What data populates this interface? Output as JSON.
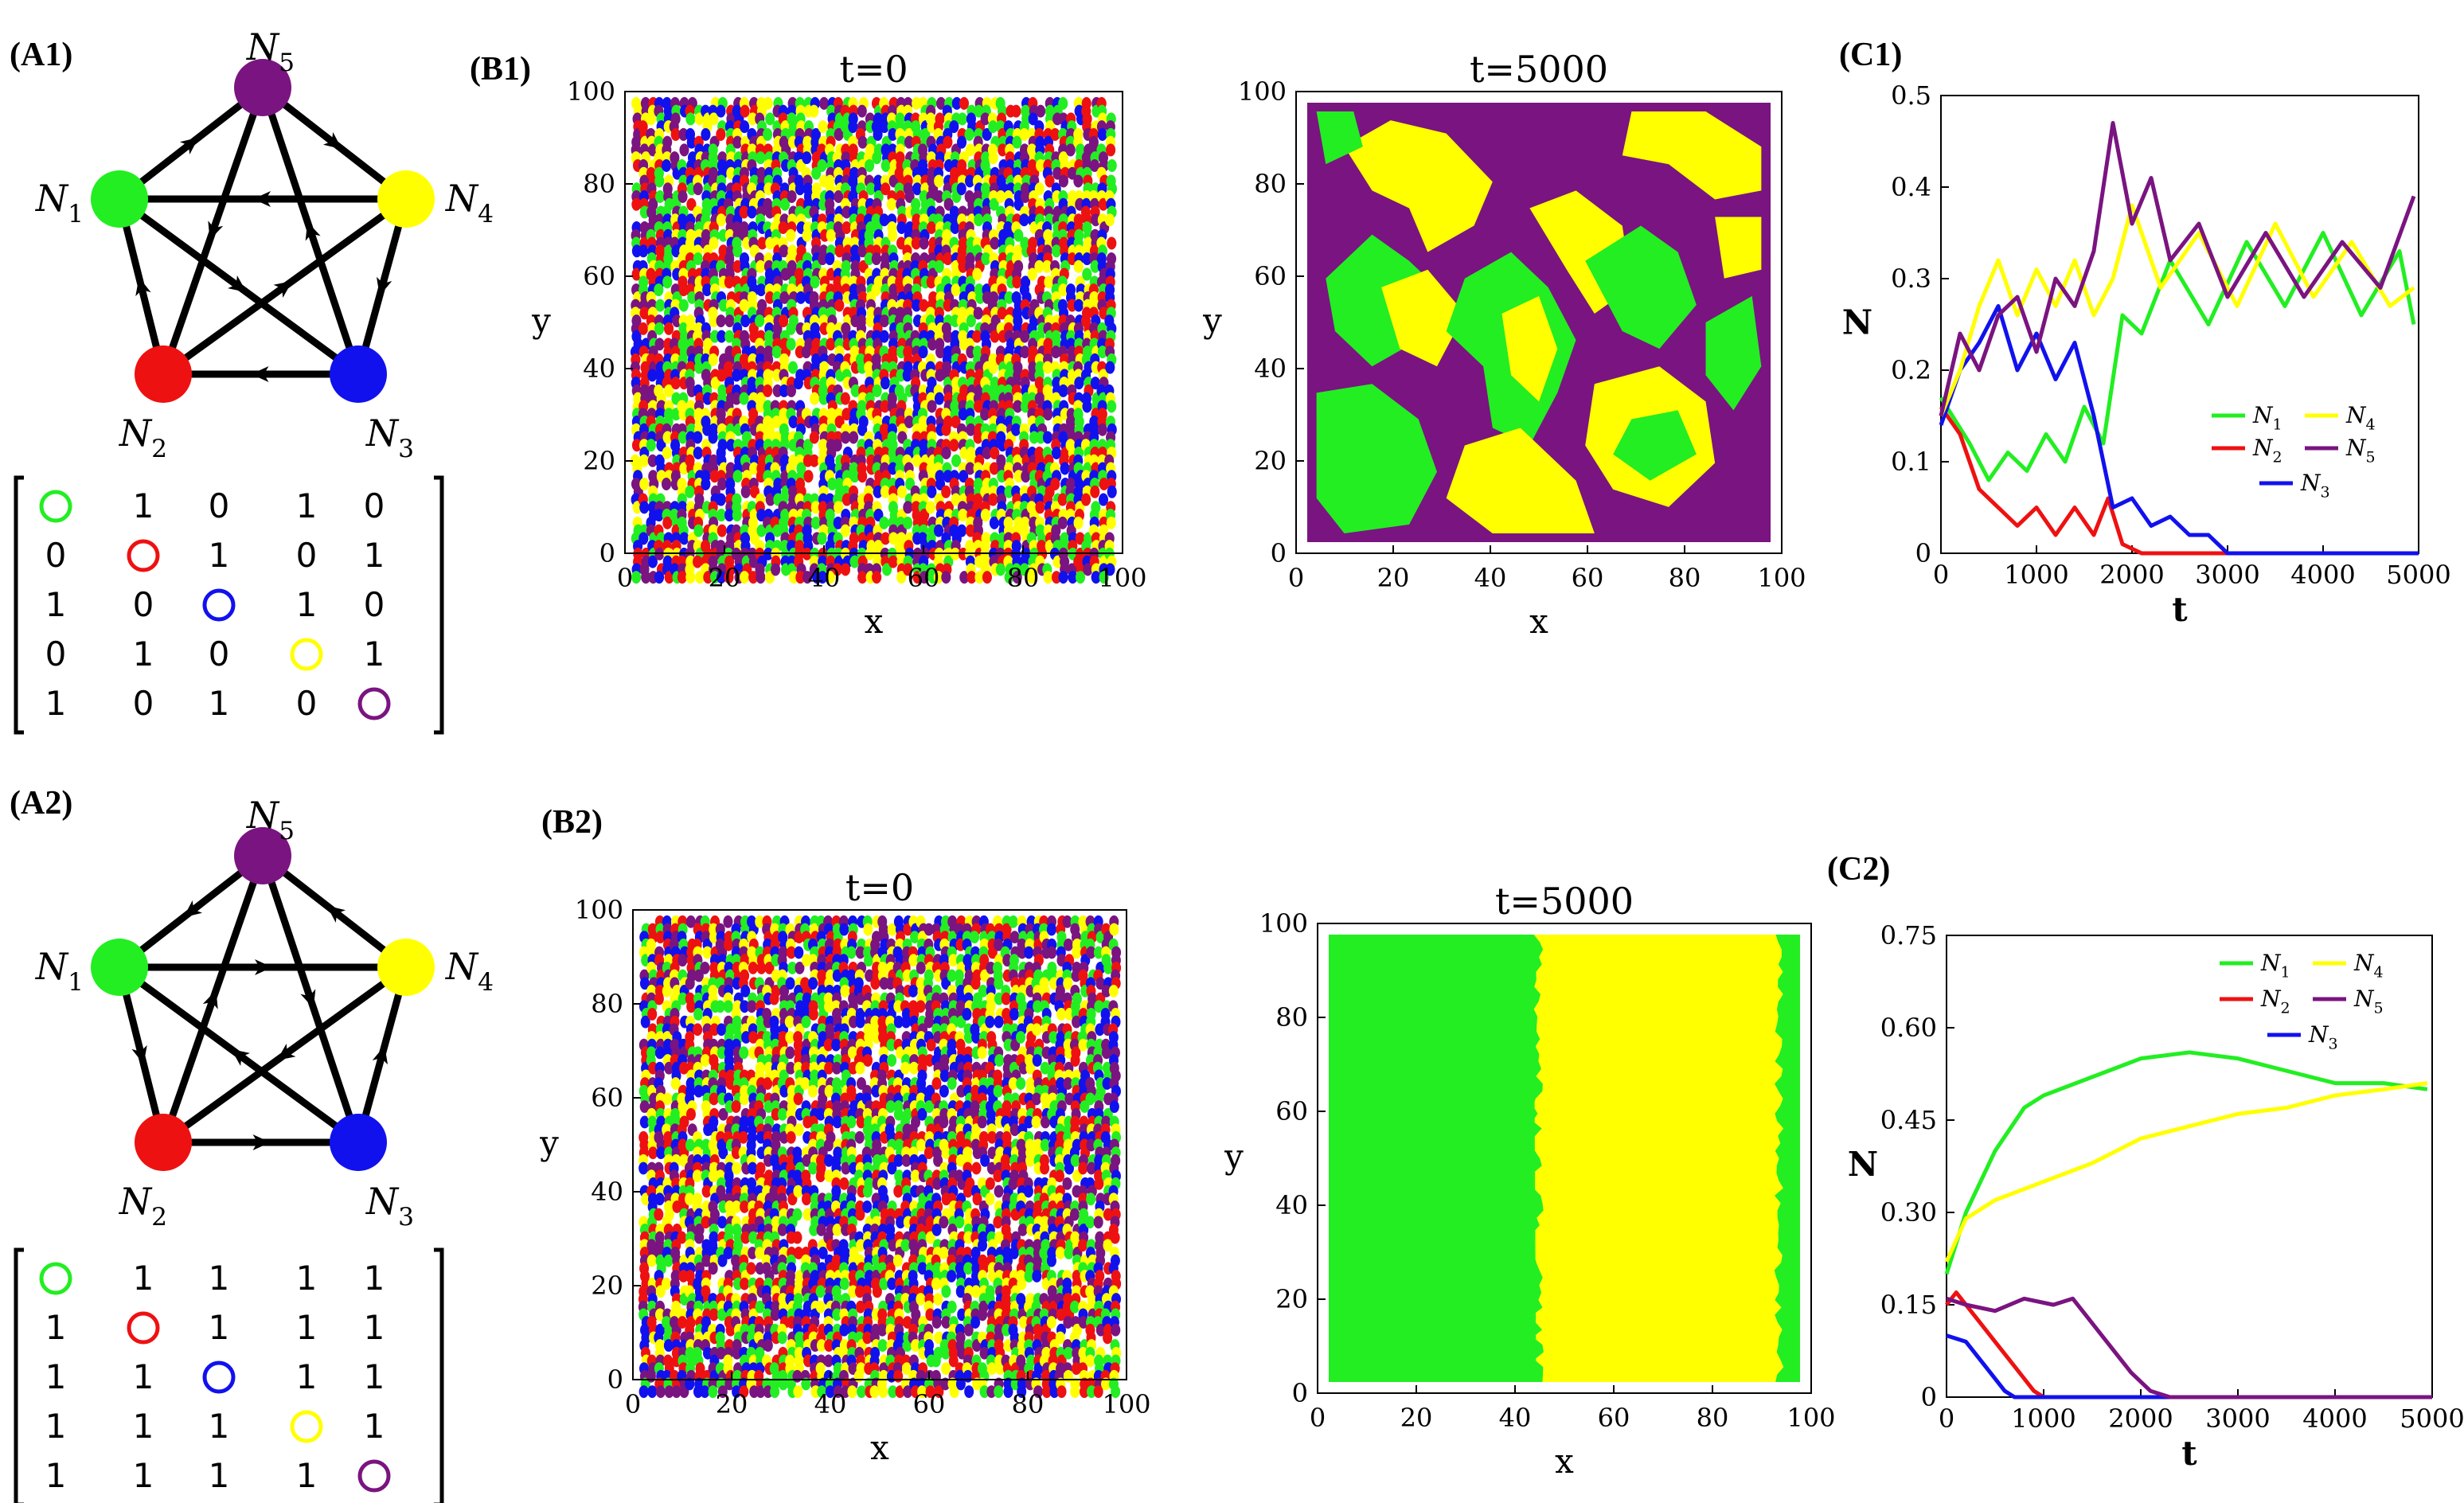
{
  "panels": {
    "a1": "(A1)",
    "b1": "(B1)",
    "c1": "(C1)",
    "a2": "(A2)",
    "b2": "(B2)",
    "c2": "(C2)"
  },
  "nodes": {
    "names": [
      "N",
      "N",
      "N",
      "N",
      "N"
    ],
    "subs": [
      "1",
      "2",
      "3",
      "4",
      "5"
    ],
    "colors": [
      "#22ee22",
      "#ee1111",
      "#1111ee",
      "#ffff00",
      "#7a1480"
    ]
  },
  "matrices": {
    "a1": [
      [
        "",
        "1",
        "0",
        "1",
        "0"
      ],
      [
        "0",
        "",
        "1",
        "0",
        "1"
      ],
      [
        "1",
        "0",
        "",
        "1",
        "0"
      ],
      [
        "0",
        "1",
        "0",
        "",
        "1"
      ],
      [
        "1",
        "0",
        "1",
        "0",
        ""
      ]
    ],
    "a2": [
      [
        "",
        "1",
        "1",
        "1",
        "1"
      ],
      [
        "1",
        "",
        "1",
        "1",
        "1"
      ],
      [
        "1",
        "1",
        "",
        "1",
        "1"
      ],
      [
        "1",
        "1",
        "1",
        "",
        "1"
      ],
      [
        "1",
        "1",
        "1",
        "1",
        ""
      ]
    ]
  },
  "lattice": {
    "titles": [
      "t=0",
      "t=5000",
      "t=0",
      "t=5000"
    ],
    "xlabel": "x",
    "ylabel": "y",
    "ticks": [
      "0",
      "20",
      "40",
      "60",
      "80",
      "100"
    ]
  },
  "chart_data": [
    {
      "type": "line",
      "panel": "C1",
      "xlabel": "t",
      "ylabel": "N",
      "xlim": [
        0,
        5000
      ],
      "ylim": [
        0,
        0.5
      ],
      "xticks": [
        "0",
        "1000",
        "2000",
        "3000",
        "4000",
        "5000"
      ],
      "yticks": [
        "0",
        "0.1",
        "0.2",
        "0.3",
        "0.4",
        "0.5"
      ],
      "legend_position": "center-right",
      "series": [
        {
          "name": "N1",
          "label": "N",
          "sub": "1",
          "color": "#22ee22",
          "x": [
            0,
            300,
            500,
            700,
            900,
            1100,
            1300,
            1500,
            1700,
            1900,
            2100,
            2400,
            2800,
            3200,
            3600,
            4000,
            4400,
            4800,
            4950
          ],
          "y": [
            0.17,
            0.12,
            0.08,
            0.11,
            0.09,
            0.13,
            0.1,
            0.16,
            0.12,
            0.26,
            0.24,
            0.32,
            0.25,
            0.34,
            0.27,
            0.35,
            0.26,
            0.33,
            0.25
          ]
        },
        {
          "name": "N2",
          "label": "N",
          "sub": "2",
          "color": "#ee1111",
          "x": [
            0,
            200,
            400,
            600,
            800,
            1000,
            1200,
            1400,
            1600,
            1750,
            1900,
            2100,
            5000
          ],
          "y": [
            0.16,
            0.13,
            0.07,
            0.05,
            0.03,
            0.05,
            0.02,
            0.05,
            0.02,
            0.06,
            0.01,
            0.0,
            0.0
          ]
        },
        {
          "name": "N3",
          "label": "N",
          "sub": "3",
          "color": "#1111ee",
          "x": [
            0,
            200,
            400,
            600,
            800,
            1000,
            1200,
            1400,
            1600,
            1800,
            2000,
            2200,
            2400,
            2600,
            2800,
            3000,
            5000
          ],
          "y": [
            0.14,
            0.2,
            0.23,
            0.27,
            0.2,
            0.24,
            0.19,
            0.23,
            0.15,
            0.05,
            0.06,
            0.03,
            0.04,
            0.02,
            0.02,
            0.0,
            0.0
          ]
        },
        {
          "name": "N4",
          "label": "N",
          "sub": "4",
          "color": "#ffff00",
          "x": [
            0,
            200,
            400,
            600,
            800,
            1000,
            1200,
            1400,
            1600,
            1800,
            2000,
            2300,
            2700,
            3100,
            3500,
            3900,
            4300,
            4700,
            4950
          ],
          "y": [
            0.15,
            0.2,
            0.27,
            0.32,
            0.26,
            0.31,
            0.27,
            0.32,
            0.26,
            0.3,
            0.38,
            0.29,
            0.35,
            0.27,
            0.36,
            0.28,
            0.34,
            0.27,
            0.29
          ]
        },
        {
          "name": "N5",
          "label": "N",
          "sub": "5",
          "color": "#7a1480",
          "x": [
            0,
            200,
            400,
            600,
            800,
            1000,
            1200,
            1400,
            1600,
            1800,
            2000,
            2200,
            2400,
            2700,
            3000,
            3400,
            3800,
            4200,
            4600,
            4950
          ],
          "y": [
            0.15,
            0.24,
            0.2,
            0.26,
            0.28,
            0.22,
            0.3,
            0.27,
            0.33,
            0.47,
            0.36,
            0.41,
            0.32,
            0.36,
            0.28,
            0.35,
            0.28,
            0.34,
            0.29,
            0.39
          ]
        }
      ]
    },
    {
      "type": "line",
      "panel": "C2",
      "xlabel": "t",
      "ylabel": "N",
      "xlim": [
        0,
        5000
      ],
      "ylim": [
        0,
        0.75
      ],
      "xticks": [
        "0",
        "1000",
        "2000",
        "3000",
        "4000",
        "5000"
      ],
      "yticks": [
        "0",
        "0.15",
        "0.30",
        "0.45",
        "0.60",
        "0.75"
      ],
      "legend_position": "top-right",
      "series": [
        {
          "name": "N1",
          "label": "N",
          "sub": "1",
          "color": "#22ee22",
          "x": [
            0,
            200,
            500,
            800,
            1000,
            1500,
            2000,
            2500,
            3000,
            3500,
            4000,
            4500,
            4950
          ],
          "y": [
            0.2,
            0.3,
            0.4,
            0.47,
            0.49,
            0.52,
            0.55,
            0.56,
            0.55,
            0.53,
            0.51,
            0.51,
            0.5
          ]
        },
        {
          "name": "N2",
          "label": "N",
          "sub": "2",
          "color": "#ee1111",
          "x": [
            0,
            100,
            300,
            500,
            700,
            900,
            1000,
            5000
          ],
          "y": [
            0.15,
            0.17,
            0.13,
            0.09,
            0.05,
            0.01,
            0.0,
            0.0
          ]
        },
        {
          "name": "N3",
          "label": "N",
          "sub": "3",
          "color": "#1111ee",
          "x": [
            0,
            200,
            400,
            600,
            700,
            5000
          ],
          "y": [
            0.1,
            0.09,
            0.05,
            0.01,
            0.0,
            0.0
          ]
        },
        {
          "name": "N4",
          "label": "N",
          "sub": "4",
          "color": "#ffff00",
          "x": [
            0,
            200,
            500,
            1000,
            1500,
            2000,
            2500,
            3000,
            3500,
            4000,
            4500,
            4950
          ],
          "y": [
            0.22,
            0.29,
            0.32,
            0.35,
            0.38,
            0.42,
            0.44,
            0.46,
            0.47,
            0.49,
            0.5,
            0.51
          ]
        },
        {
          "name": "N5",
          "label": "N",
          "sub": "5",
          "color": "#7a1480",
          "x": [
            0,
            200,
            500,
            800,
            1100,
            1300,
            1600,
            1900,
            2100,
            2300,
            5000
          ],
          "y": [
            0.16,
            0.15,
            0.14,
            0.16,
            0.15,
            0.16,
            0.1,
            0.04,
            0.01,
            0.0,
            0.0
          ]
        }
      ]
    }
  ]
}
